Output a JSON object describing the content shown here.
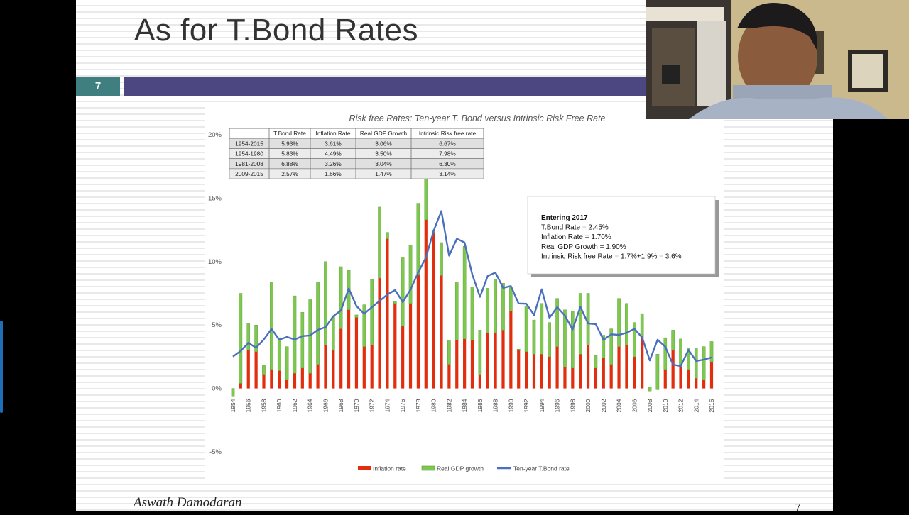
{
  "slide": {
    "title": "As for T.Bond Rates",
    "number": "7",
    "author": "Aswath Damodaran",
    "corner_page": "7"
  },
  "video": {
    "icon": "presenter-webcam"
  },
  "colors": {
    "inflation": "#e02e0f",
    "gdp": "#7ec850",
    "tbond": "#4a6fbd",
    "accent_bar": "#4c4681",
    "number_box": "#3f7f80"
  },
  "chart_data": {
    "type": "bar",
    "title": "Risk free Rates: Ten-year T. Bond versus Intrinsic Risk Free Rate",
    "ylim": [
      -5,
      20
    ],
    "yticks": [
      "-5%",
      "0%",
      "5%",
      "10%",
      "15%",
      "20%"
    ],
    "ytick_values": [
      -5,
      0,
      5,
      10,
      15,
      20
    ],
    "xtick_labels": [
      "1954",
      "1956",
      "1958",
      "1960",
      "1962",
      "1964",
      "1966",
      "1968",
      "1970",
      "1972",
      "1974",
      "1976",
      "1978",
      "1980",
      "1982",
      "1984",
      "1986",
      "1988",
      "1990",
      "1992",
      "1994",
      "1996",
      "1998",
      "2000",
      "2002",
      "2004",
      "2006",
      "2008",
      "2010",
      "2012",
      "2014",
      "2016"
    ],
    "years": [
      1954,
      1955,
      1956,
      1957,
      1958,
      1959,
      1960,
      1961,
      1962,
      1963,
      1964,
      1965,
      1966,
      1967,
      1968,
      1969,
      1970,
      1971,
      1972,
      1973,
      1974,
      1975,
      1976,
      1977,
      1978,
      1979,
      1980,
      1981,
      1982,
      1983,
      1984,
      1985,
      1986,
      1987,
      1988,
      1989,
      1990,
      1991,
      1992,
      1993,
      1994,
      1995,
      1996,
      1997,
      1998,
      1999,
      2000,
      2001,
      2002,
      2003,
      2004,
      2005,
      2006,
      2007,
      2008,
      2009,
      2010,
      2011,
      2012,
      2013,
      2014,
      2015,
      2016
    ],
    "series": [
      {
        "name": "Inflation rate",
        "values": [
          -0.5,
          0.4,
          3.0,
          2.9,
          1.8,
          1.5,
          1.4,
          0.7,
          1.2,
          1.6,
          1.2,
          1.9,
          3.4,
          3.0,
          4.7,
          6.2,
          5.6,
          3.3,
          3.4,
          8.7,
          12.3,
          6.9,
          4.9,
          6.7,
          9.0,
          13.3,
          12.5,
          8.9,
          3.8,
          3.8,
          3.9,
          3.8,
          1.1,
          4.4,
          4.4,
          4.6,
          6.1,
          3.1,
          2.9,
          2.7,
          2.7,
          2.5,
          3.3,
          1.7,
          1.6,
          2.7,
          3.4,
          1.6,
          2.4,
          1.9,
          3.3,
          3.4,
          2.5,
          4.1,
          0.1,
          2.7,
          1.5,
          3.0,
          1.7,
          1.5,
          0.8,
          0.7,
          2.1
        ]
      },
      {
        "name": "Real GDP growth",
        "values": [
          -0.6,
          7.1,
          2.1,
          2.1,
          -0.7,
          6.9,
          2.6,
          2.6,
          6.1,
          4.4,
          5.8,
          6.5,
          6.6,
          2.7,
          4.9,
          3.1,
          0.2,
          3.3,
          5.2,
          5.6,
          -0.5,
          -0.2,
          5.4,
          4.6,
          5.6,
          3.2,
          -0.2,
          2.6,
          -1.9,
          4.6,
          7.3,
          4.2,
          3.5,
          3.5,
          4.2,
          3.7,
          1.9,
          -0.1,
          3.6,
          2.7,
          4.0,
          2.7,
          3.8,
          4.5,
          4.5,
          4.8,
          4.1,
          1.0,
          1.8,
          2.8,
          3.8,
          3.3,
          2.7,
          1.8,
          -0.3,
          -2.8,
          2.5,
          1.6,
          2.2,
          1.7,
          2.4,
          2.6,
          1.6
        ]
      },
      {
        "name": "Ten-year T.Bond rate",
        "values": [
          2.51,
          2.96,
          3.59,
          3.21,
          3.86,
          4.69,
          3.84,
          4.06,
          3.86,
          4.13,
          4.18,
          4.62,
          4.84,
          5.7,
          6.16,
          7.88,
          6.5,
          5.89,
          6.41,
          6.9,
          7.4,
          7.76,
          6.81,
          7.78,
          9.15,
          10.33,
          12.43,
          13.98,
          10.47,
          11.8,
          11.51,
          8.99,
          7.22,
          8.86,
          9.14,
          7.93,
          8.07,
          6.7,
          6.68,
          5.79,
          7.82,
          5.57,
          6.41,
          5.74,
          4.65,
          6.44,
          5.12,
          5.07,
          3.83,
          4.27,
          4.22,
          4.39,
          4.7,
          4.02,
          2.21,
          3.84,
          3.29,
          1.88,
          1.76,
          3.04,
          2.17,
          2.27,
          2.45
        ]
      }
    ],
    "table": {
      "headers": [
        "",
        "T.Bond Rate",
        "Inflation Rate",
        "Real GDP Growth",
        "Intrinsic Risk free rate"
      ],
      "rows": [
        [
          "1954-2015",
          "5.93%",
          "3.61%",
          "3.06%",
          "6.67%"
        ],
        [
          "1954-1980",
          "5.83%",
          "4.49%",
          "3.50%",
          "7.98%"
        ],
        [
          "1981-2008",
          "6.88%",
          "3.26%",
          "3.04%",
          "6.30%"
        ],
        [
          "2009-2015",
          "2.57%",
          "1.66%",
          "1.47%",
          "3.14%"
        ]
      ]
    },
    "annotation": [
      "Entering 2017",
      "T.Bond Rate = 2.45%",
      "Inflation Rate  = 1.70%",
      "Real GDP Growth = 1.90%",
      "Intrinsic Risk free Rate = 1.7%+1.9% = 3.6%"
    ],
    "legend": [
      "Inflation rate",
      "Real GDP growth",
      "Ten-year T.Bond rate"
    ],
    "legend_position": "bottom",
    "grid": false
  }
}
